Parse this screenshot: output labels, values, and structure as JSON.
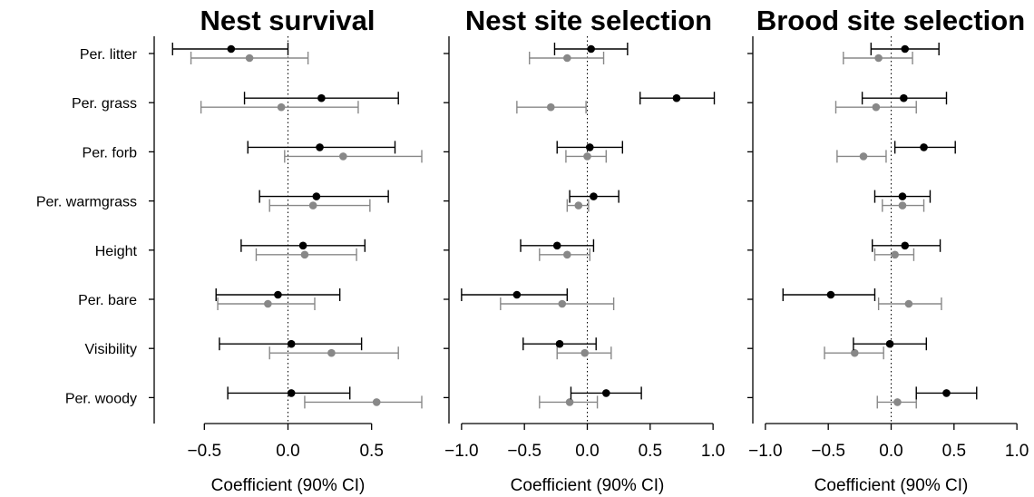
{
  "chart_data": {
    "type": "scatter",
    "style": "coefficient-plot-with-error-bars",
    "series_colors": {
      "primary": "#000000",
      "secondary": "#888888"
    },
    "reference_line": {
      "x": 0,
      "style": "dotted"
    },
    "panels": [
      {
        "title": "Nest survival",
        "xlabel": "Coefficient (90% CI)",
        "xlim": [
          -0.8,
          0.8
        ],
        "xticks": [
          -0.5,
          0.0,
          0.5
        ],
        "xtick_labels": [
          "−0.5",
          "0.0",
          "0.5"
        ],
        "categories": [
          "Per. litter",
          "Per. grass",
          "Per. forb",
          "Per. warmgrass",
          "Height",
          "Per. bare",
          "Visibility",
          "Per. woody"
        ],
        "series": [
          {
            "color": "#000000",
            "estimate": [
              -0.34,
              0.2,
              0.19,
              0.17,
              0.09,
              -0.06,
              0.02,
              0.02
            ],
            "lower": [
              -0.69,
              -0.26,
              -0.24,
              -0.17,
              -0.28,
              -0.43,
              -0.41,
              -0.36
            ],
            "upper": [
              0.0,
              0.66,
              0.64,
              0.6,
              0.46,
              0.31,
              0.44,
              0.37
            ]
          },
          {
            "color": "#888888",
            "estimate": [
              -0.23,
              -0.04,
              0.33,
              0.15,
              0.1,
              -0.12,
              0.26,
              0.53
            ],
            "lower": [
              -0.58,
              -0.52,
              -0.02,
              -0.11,
              -0.19,
              -0.42,
              -0.11,
              0.1
            ],
            "upper": [
              0.12,
              0.42,
              0.8,
              0.49,
              0.41,
              0.16,
              0.66,
              0.8
            ]
          }
        ]
      },
      {
        "title": "Nest site selection",
        "xlabel": "Coefficient (90% CI)",
        "xlim": [
          -1.1,
          1.1
        ],
        "xticks": [
          -1.0,
          -0.5,
          0.0,
          0.5,
          1.0
        ],
        "xtick_labels": [
          "−1.0",
          "−0.5",
          "0.0",
          "0.5",
          "1.0"
        ],
        "categories": [
          "Per. litter",
          "Per. grass",
          "Per. forb",
          "Per. warmgrass",
          "Height",
          "Per. bare",
          "Visibility",
          "Per. woody"
        ],
        "series": [
          {
            "color": "#000000",
            "estimate": [
              0.03,
              0.71,
              0.02,
              0.05,
              -0.24,
              -0.56,
              -0.22,
              0.15
            ],
            "lower": [
              -0.26,
              0.42,
              -0.24,
              -0.14,
              -0.53,
              -1.0,
              -0.51,
              -0.13
            ],
            "upper": [
              0.32,
              1.01,
              0.28,
              0.25,
              0.05,
              -0.16,
              0.07,
              0.43
            ]
          },
          {
            "color": "#888888",
            "estimate": [
              -0.16,
              -0.29,
              0.0,
              -0.07,
              -0.16,
              -0.2,
              -0.02,
              -0.14
            ],
            "lower": [
              -0.46,
              -0.56,
              -0.17,
              -0.16,
              -0.38,
              -0.69,
              -0.24,
              -0.38
            ],
            "upper": [
              0.13,
              -0.01,
              0.15,
              0.01,
              0.02,
              0.21,
              0.19,
              0.08
            ]
          }
        ]
      },
      {
        "title": "Brood site selection",
        "xlabel": "Coefficient (90% CI)",
        "xlim": [
          -1.1,
          1.1
        ],
        "xticks": [
          -1.0,
          -0.5,
          0.0,
          0.5,
          1.0
        ],
        "xtick_labels": [
          "−1.0",
          "−0.5",
          "0.0",
          "0.5",
          "1.0"
        ],
        "categories": [
          "Per. litter",
          "Per. grass",
          "Per. forb",
          "Per. warmgrass",
          "Height",
          "Per. bare",
          "Visibility",
          "Per. woody"
        ],
        "series": [
          {
            "color": "#000000",
            "estimate": [
              0.11,
              0.1,
              0.26,
              0.09,
              0.11,
              -0.48,
              -0.01,
              0.44
            ],
            "lower": [
              -0.16,
              -0.23,
              0.03,
              -0.13,
              -0.15,
              -0.86,
              -0.3,
              0.2
            ],
            "upper": [
              0.38,
              0.44,
              0.51,
              0.31,
              0.39,
              -0.13,
              0.28,
              0.68
            ]
          },
          {
            "color": "#888888",
            "estimate": [
              -0.1,
              -0.12,
              -0.22,
              0.09,
              0.03,
              0.14,
              -0.29,
              0.05
            ],
            "lower": [
              -0.38,
              -0.44,
              -0.43,
              -0.07,
              -0.13,
              -0.1,
              -0.53,
              -0.11
            ],
            "upper": [
              0.17,
              0.2,
              -0.04,
              0.26,
              0.18,
              0.4,
              -0.06,
              0.2
            ]
          }
        ]
      }
    ]
  }
}
